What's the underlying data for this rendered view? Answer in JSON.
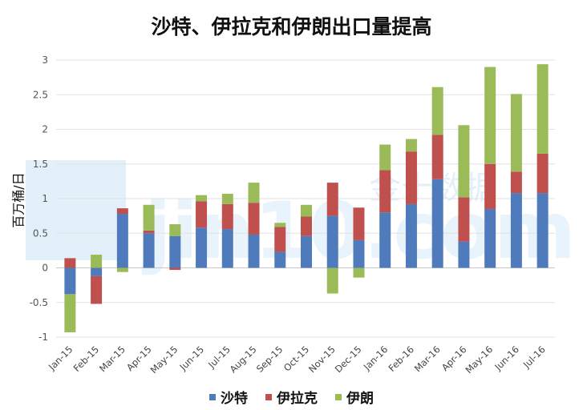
{
  "chart_data": {
    "type": "bar",
    "stacked": true,
    "title": "沙特、伊拉克和伊朗出口量提高",
    "ylabel": "百万桶/日",
    "ylim": [
      -1,
      3
    ],
    "yticks": [
      "3",
      "2.5",
      "2",
      "1.5",
      "1",
      "0.5",
      "0",
      "-0.5",
      "-1"
    ],
    "grid": true,
    "legend_position": "bottom",
    "categories": [
      "Jan-15",
      "Feb-15",
      "Mar-15",
      "Apr-15",
      "May-15",
      "Jun-15",
      "Jul-15",
      "Aug-15",
      "Sep-15",
      "Oct-15",
      "Nov-15",
      "Dec-15",
      "Jan-16",
      "Feb-16",
      "Mar-16",
      "Apr-16",
      "May-16",
      "Jun-16",
      "Jul-16"
    ],
    "series": [
      {
        "name": "沙特",
        "color": "#4f7bbd",
        "values": [
          -0.38,
          -0.12,
          0.78,
          0.5,
          0.46,
          0.58,
          0.56,
          0.48,
          0.23,
          0.46,
          0.75,
          0.4,
          0.8,
          0.92,
          1.28,
          0.38,
          0.85,
          1.08,
          1.08
        ]
      },
      {
        "name": "伊拉克",
        "color": "#c0504d",
        "values": [
          0.14,
          -0.4,
          0.08,
          0.04,
          -0.03,
          0.38,
          0.36,
          0.46,
          0.36,
          0.28,
          0.48,
          0.47,
          0.61,
          0.76,
          0.64,
          0.64,
          0.65,
          0.31,
          0.57
        ]
      },
      {
        "name": "伊朗",
        "color": "#9bbb59",
        "values": [
          -0.55,
          0.19,
          -0.06,
          0.37,
          0.17,
          0.09,
          0.15,
          0.29,
          0.06,
          0.17,
          -0.37,
          -0.14,
          0.37,
          0.18,
          0.69,
          1.04,
          1.4,
          1.12,
          1.29
        ]
      }
    ]
  },
  "watermark": {
    "text_cn": "金十数据",
    "text_latin": "jin10.com"
  }
}
